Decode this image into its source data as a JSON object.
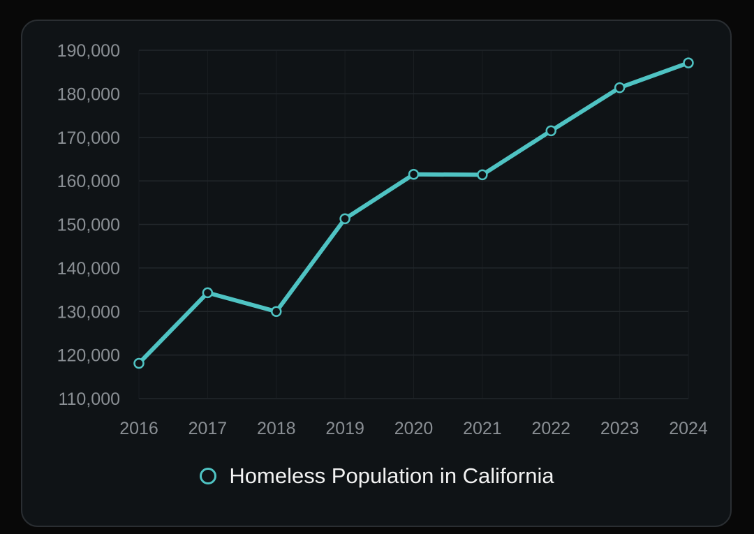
{
  "chart_data": {
    "type": "line",
    "title": "",
    "xlabel": "",
    "ylabel": "",
    "categories": [
      "2016",
      "2017",
      "2018",
      "2019",
      "2020",
      "2021",
      "2022",
      "2023",
      "2024"
    ],
    "ylim": [
      110000,
      190000
    ],
    "yticks": [
      110000,
      120000,
      130000,
      140000,
      150000,
      160000,
      170000,
      180000,
      190000
    ],
    "ytick_labels": [
      "110,000",
      "120,000",
      "130,000",
      "140,000",
      "150,000",
      "160,000",
      "170,000",
      "180,000",
      "190,000"
    ],
    "series": [
      {
        "name": "Homeless Population in California",
        "values": [
          118100,
          134300,
          130000,
          151300,
          161500,
          161400,
          171500,
          181400,
          187100
        ]
      }
    ],
    "grid": true,
    "legend_position": "bottom-center",
    "colors": {
      "line": "#4fc3c3",
      "background": "#0f1316",
      "grid": "#22272b",
      "tick_text": "#8a8f94"
    }
  },
  "legend": {
    "label": "Homeless Population in California",
    "icon": "hollow-circle-icon"
  }
}
